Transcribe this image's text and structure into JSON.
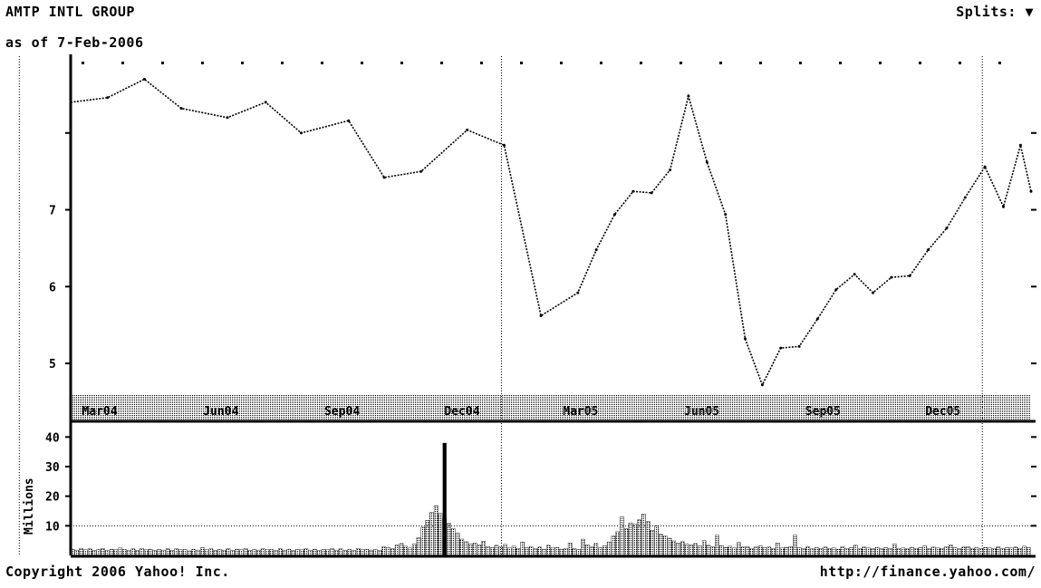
{
  "header": {
    "title": "AMTP INTL GROUP",
    "subtitle": "as of 7-Feb-2006",
    "splits_label": "Splits: ▼"
  },
  "footer": {
    "copyright": "Copyright 2006 Yahoo! Inc.",
    "url": "http://finance.yahoo.com/"
  },
  "chart_data": [
    {
      "type": "line",
      "title": "",
      "xlabel": "",
      "ylabel": "",
      "x": [
        "2004-02-09",
        "2004-03-08",
        "2004-04-05",
        "2004-05-03",
        "2004-06-07",
        "2004-07-06",
        "2004-08-02",
        "2004-09-07",
        "2004-10-04",
        "2004-11-01",
        "2004-12-06",
        "2005-01-03",
        "2005-01-31",
        "2005-02-28",
        "2005-03-14",
        "2005-03-28",
        "2005-04-11",
        "2005-04-25",
        "2005-05-09",
        "2005-05-23",
        "2005-06-06",
        "2005-06-20",
        "2005-07-05",
        "2005-07-18",
        "2005-08-01",
        "2005-08-15",
        "2005-08-29",
        "2005-09-12",
        "2005-09-26",
        "2005-10-10",
        "2005-10-24",
        "2005-11-07",
        "2005-11-21",
        "2005-12-05",
        "2005-12-19",
        "2006-01-03",
        "2006-01-17",
        "2006-01-30",
        "2006-02-07"
      ],
      "values": [
        72.0,
        72.3,
        73.5,
        71.6,
        71.0,
        72.0,
        70.0,
        70.8,
        67.1,
        67.5,
        70.2,
        69.2,
        58.1,
        59.6,
        62.4,
        64.7,
        66.2,
        66.1,
        67.6,
        72.4,
        68.1,
        64.7,
        56.6,
        53.6,
        56.0,
        56.1,
        57.9,
        59.8,
        60.8,
        59.6,
        60.6,
        60.7,
        62.4,
        63.8,
        65.8,
        67.8,
        65.2,
        69.2,
        66.2
      ],
      "x_ticks": [
        "Mar04",
        "Jun04",
        "Sep04",
        "Dec04",
        "Mar05",
        "Jun05",
        "Sep05",
        "Dec05"
      ],
      "year_boundaries": [
        "Jan04",
        "Jan05",
        "Jan06"
      ],
      "y_ticks": [
        55,
        60,
        65,
        70
      ],
      "y_tick_labels": [
        "5",
        "6",
        "7",
        ""
      ],
      "grid": true,
      "line_style": "dotted"
    },
    {
      "type": "bar",
      "title": "",
      "ylabel": "Millions",
      "y_ticks": [
        10,
        20,
        30,
        40
      ],
      "y_tick_labels": [
        "10",
        "20",
        "30",
        "40"
      ],
      "values": [
        2.1,
        1.8,
        2.4,
        1.9,
        2.2,
        1.6,
        2.0,
        2.3,
        1.7,
        2.1,
        1.9,
        2.5,
        2.0,
        1.8,
        2.2,
        1.7,
        2.4,
        1.9,
        2.1,
        1.6,
        2.0,
        1.8,
        2.3,
        1.7,
        2.2,
        1.9,
        2.0,
        1.5,
        2.1,
        1.8,
        2.6,
        1.9,
        2.2,
        1.7,
        2.0,
        1.8,
        2.3,
        1.6,
        2.1,
        1.9,
        2.4,
        1.7,
        2.0,
        1.8,
        2.2,
        1.9,
        2.0,
        1.7,
        2.3,
        1.8,
        2.1,
        1.6,
        2.0,
        1.9,
        2.2,
        1.8,
        2.1,
        1.7,
        2.0,
        1.9,
        2.3,
        1.8,
        2.2,
        1.6,
        2.0,
        1.7,
        2.4,
        1.9,
        2.1,
        1.8,
        2.0,
        1.7,
        3.0,
        2.6,
        2.2,
        3.5,
        4.0,
        3.1,
        2.5,
        3.8,
        6.0,
        9.5,
        11.8,
        14.5,
        16.8,
        14.2,
        12.6,
        10.8,
        9.0,
        7.5,
        5.5,
        4.6,
        3.8,
        4.2,
        3.5,
        4.8,
        3.0,
        2.6,
        3.4,
        2.8,
        3.7,
        2.5,
        3.1,
        2.4,
        4.5,
        2.6,
        3.0,
        2.2,
        2.8,
        2.1,
        3.4,
        2.5,
        2.7,
        2.0,
        2.4,
        4.2,
        2.3,
        2.0,
        5.5,
        3.6,
        2.8,
        4.0,
        2.6,
        3.2,
        4.5,
        6.5,
        8.0,
        13.0,
        9.0,
        11.0,
        10.5,
        12.0,
        14.0,
        11.5,
        8.5,
        10.0,
        7.2,
        6.5,
        5.8,
        4.9,
        4.2,
        4.6,
        3.8,
        3.5,
        4.0,
        3.2,
        5.0,
        3.4,
        2.9,
        6.8,
        3.3,
        2.7,
        3.1,
        2.5,
        4.4,
        2.8,
        3.0,
        2.4,
        2.9,
        3.2,
        2.6,
        2.8,
        2.3,
        4.2,
        2.5,
        2.7,
        3.0,
        6.8,
        2.6,
        2.4,
        2.9,
        2.2,
        2.6,
        2.4,
        2.8,
        2.3,
        2.5,
        2.1,
        3.0,
        2.4,
        2.6,
        3.4,
        2.2,
        2.8,
        2.5,
        2.3,
        2.7,
        2.2,
        2.6,
        2.4,
        3.8,
        2.3,
        2.5,
        2.2,
        2.7,
        2.4,
        2.6,
        3.2,
        2.3,
        2.8,
        2.5,
        2.4,
        2.9,
        3.5,
        2.6,
        2.2,
        2.8,
        3.0,
        2.4,
        2.6,
        2.3,
        2.7,
        2.5,
        2.4,
        2.9,
        2.3,
        2.6,
        2.5,
        2.8,
        2.4,
        3.1,
        2.6
      ],
      "spike_values": [
        {
          "index": 86,
          "value": 38.0
        }
      ],
      "grid": false
    }
  ]
}
